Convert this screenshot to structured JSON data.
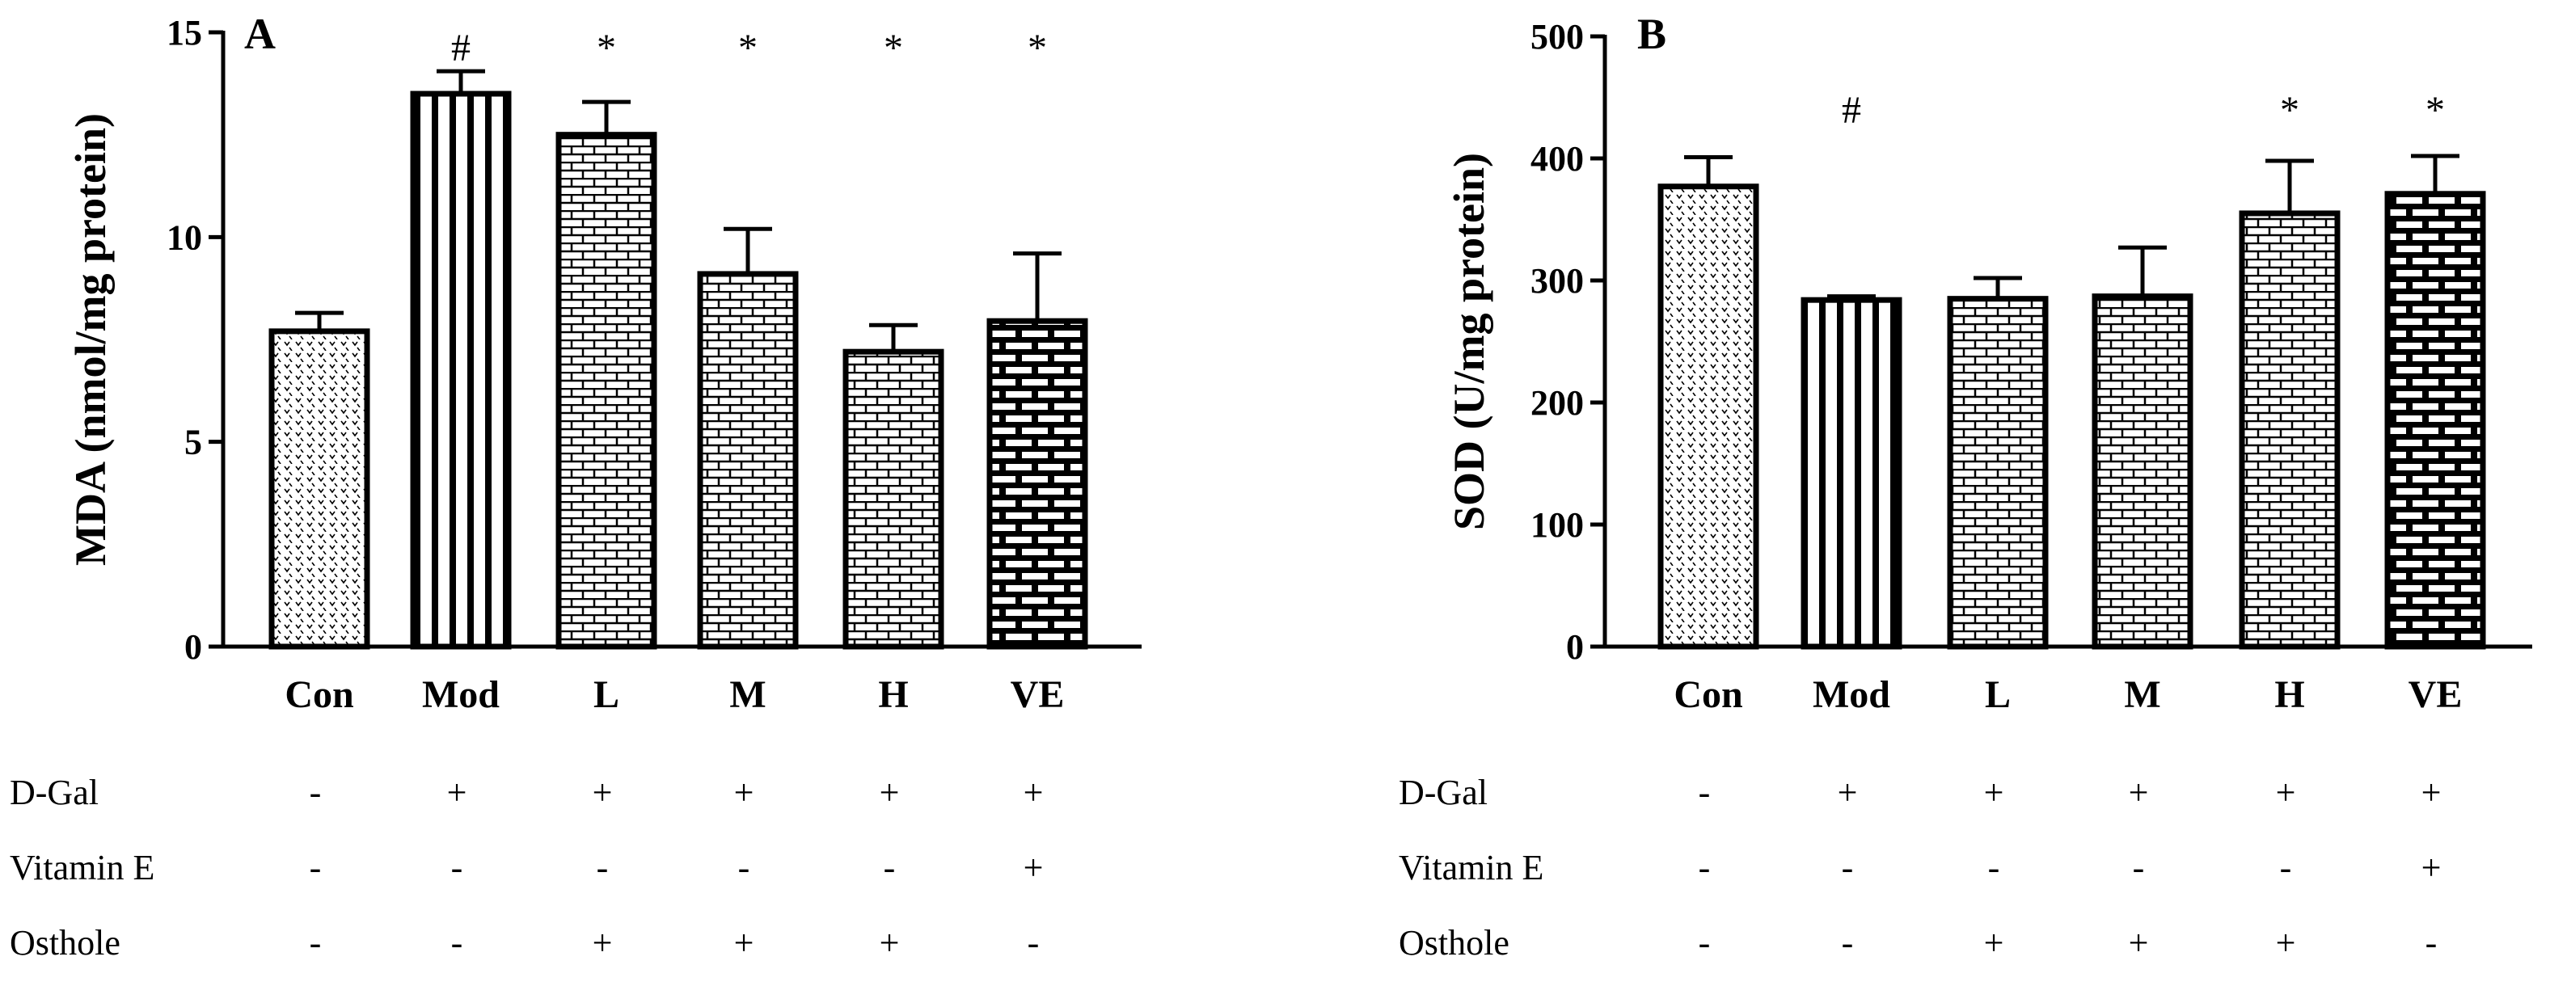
{
  "chart_data": [
    {
      "type": "bar",
      "panel": "A",
      "ylabel": "MDA (nmol/mg protein)",
      "ylim": [
        0,
        15
      ],
      "yticks": [
        0,
        5,
        10,
        15
      ],
      "categories": [
        "Con",
        "Mod",
        "L",
        "M",
        "H",
        "VE"
      ],
      "values": [
        7.7,
        13.5,
        12.5,
        9.1,
        7.2,
        7.95
      ],
      "errors": [
        0.45,
        0.55,
        0.8,
        1.1,
        0.65,
        1.65
      ],
      "significance": [
        "",
        "#",
        "*",
        "*",
        "*",
        "*"
      ],
      "patterns": [
        "dots",
        "vlines",
        "brick-small",
        "brick-small",
        "brick-small",
        "brick-large"
      ],
      "grid": false
    },
    {
      "type": "bar",
      "panel": "B",
      "ylabel": "SOD (U/mg protein)",
      "ylim": [
        0,
        500
      ],
      "yticks": [
        0,
        100,
        200,
        300,
        400,
        500
      ],
      "categories": [
        "Con",
        "Mod",
        "L",
        "M",
        "H",
        "VE"
      ],
      "values": [
        377,
        284,
        285,
        287,
        355,
        371
      ],
      "errors": [
        24,
        3,
        17,
        40,
        43,
        31
      ],
      "significance": [
        "",
        "#",
        "",
        "",
        "*",
        "*"
      ],
      "patterns": [
        "dots",
        "vlines",
        "brick-small",
        "brick-small",
        "brick-small",
        "brick-large"
      ],
      "grid": false
    }
  ],
  "treatment_table": {
    "rows": [
      {
        "label": "D-Gal",
        "marks": [
          "-",
          "+",
          "+",
          "+",
          "+",
          "+"
        ]
      },
      {
        "label": "Vitamin E",
        "marks": [
          "-",
          "-",
          "-",
          "-",
          "-",
          "+"
        ]
      },
      {
        "label": "Osthole",
        "marks": [
          "-",
          "-",
          "+",
          "+",
          "+",
          "-"
        ]
      }
    ]
  },
  "colors": {
    "ink": "#000000",
    "background": "#ffffff"
  }
}
